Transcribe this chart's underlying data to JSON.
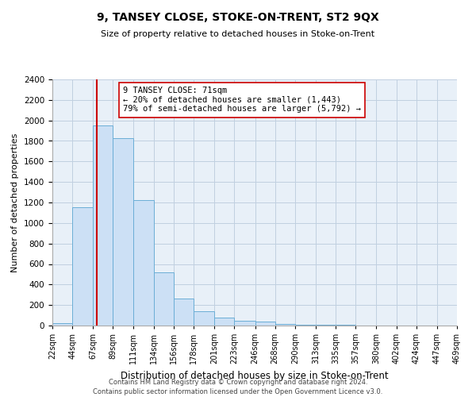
{
  "title": "9, TANSEY CLOSE, STOKE-ON-TRENT, ST2 9QX",
  "subtitle": "Size of property relative to detached houses in Stoke-on-Trent",
  "xlabel": "Distribution of detached houses by size in Stoke-on-Trent",
  "ylabel": "Number of detached properties",
  "bin_labels": [
    "22sqm",
    "44sqm",
    "67sqm",
    "89sqm",
    "111sqm",
    "134sqm",
    "156sqm",
    "178sqm",
    "201sqm",
    "223sqm",
    "246sqm",
    "268sqm",
    "290sqm",
    "313sqm",
    "335sqm",
    "357sqm",
    "380sqm",
    "402sqm",
    "424sqm",
    "447sqm",
    "469sqm"
  ],
  "bar_values": [
    25,
    1150,
    1950,
    1830,
    1220,
    520,
    265,
    140,
    75,
    45,
    35,
    15,
    10,
    5,
    5,
    3,
    2,
    2,
    2,
    1
  ],
  "bar_color": "#cce0f5",
  "bar_edge_color": "#6baed6",
  "annotation_line1": "9 TANSEY CLOSE: 71sqm",
  "annotation_line2": "← 20% of detached houses are smaller (1,443)",
  "annotation_line3": "79% of semi-detached houses are larger (5,792) →",
  "vline_x": 71,
  "vline_color": "#cc0000",
  "ylim": [
    0,
    2400
  ],
  "yticks": [
    0,
    200,
    400,
    600,
    800,
    1000,
    1200,
    1400,
    1600,
    1800,
    2000,
    2200,
    2400
  ],
  "footer_line1": "Contains HM Land Registry data © Crown copyright and database right 2024.",
  "footer_line2": "Contains public sector information licensed under the Open Government Licence v3.0.",
  "bin_edges": [
    22,
    44,
    67,
    89,
    111,
    134,
    156,
    178,
    201,
    223,
    246,
    268,
    290,
    313,
    335,
    357,
    380,
    402,
    424,
    447,
    469
  ],
  "bg_color": "#e8f0f8",
  "grid_color": "#c0d0e0"
}
